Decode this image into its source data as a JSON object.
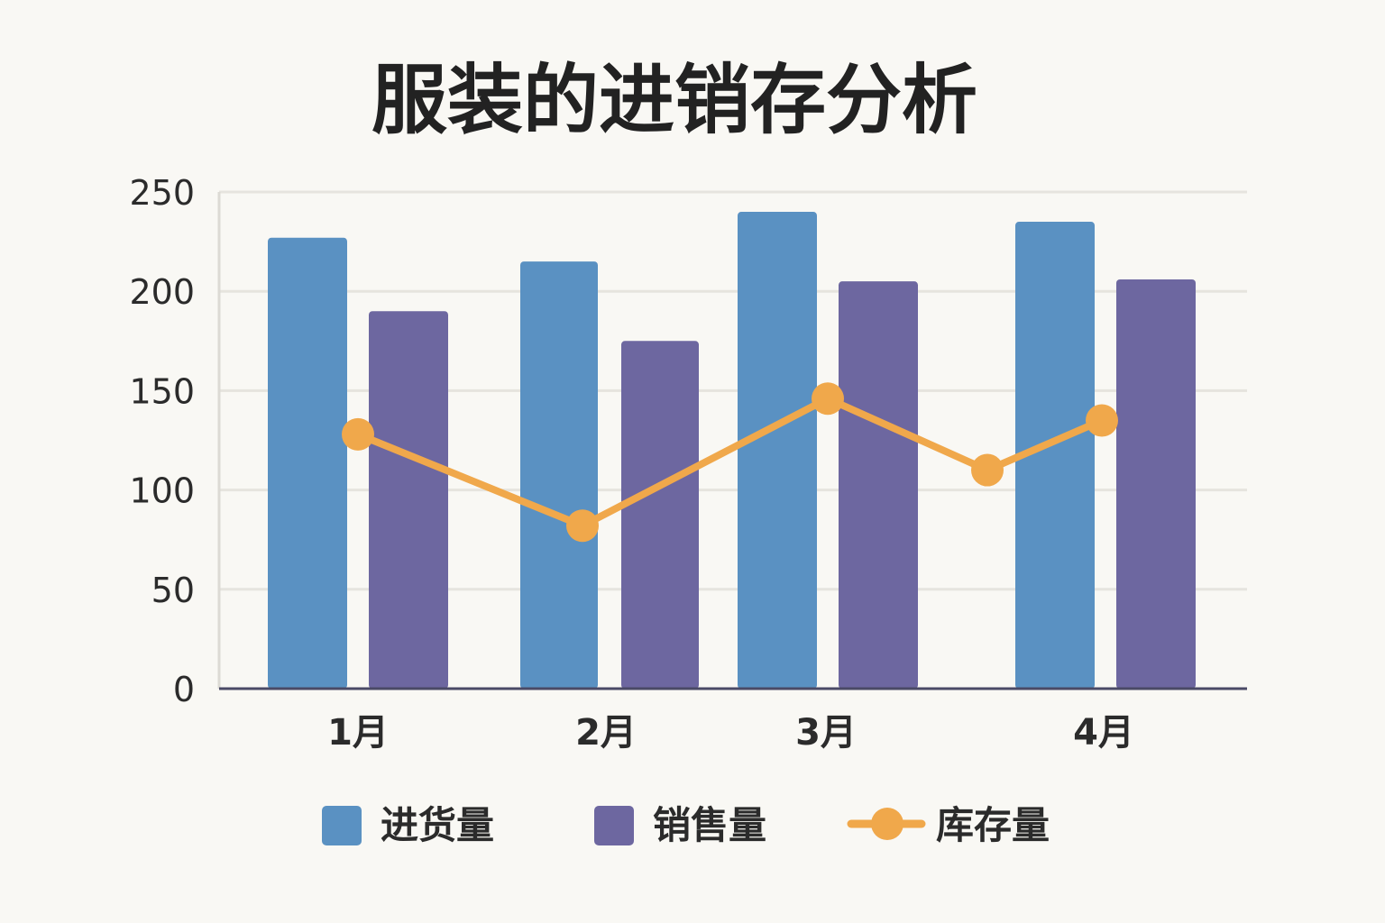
{
  "chart_data": {
    "type": "bar",
    "title": "服装的进销存分析",
    "xlabel": "",
    "ylabel": "",
    "categories": [
      "1月",
      "2月",
      "3月",
      "4月"
    ],
    "ylim": [
      0,
      250
    ],
    "yticks": [
      0,
      50,
      100,
      150,
      200,
      250
    ],
    "grid": true,
    "legend_position": "bottom",
    "series": [
      {
        "name": "进货量",
        "type": "bar",
        "color": "#5a91c2",
        "values": [
          227,
          215,
          240,
          235
        ]
      },
      {
        "name": "销售量",
        "type": "bar",
        "color": "#6d67a0",
        "values": [
          190,
          175,
          205,
          206
        ]
      },
      {
        "name": "库存量",
        "type": "line",
        "color": "#f0a84b",
        "values": [
          128,
          82,
          146,
          135
        ],
        "extra_point": 110
      }
    ]
  }
}
